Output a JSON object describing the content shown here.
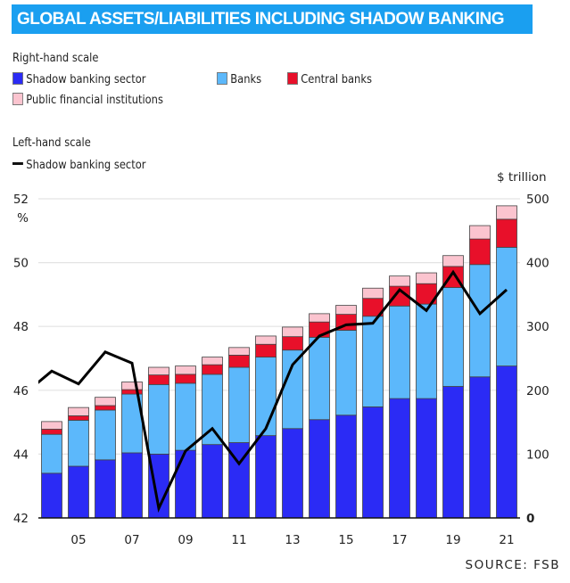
{
  "chart_data": {
    "type": "bar",
    "title": "GLOBAL ASSETS/LIABILITIES INCLUDING SHADOW BANKING",
    "source": "SOURCE: FSB",
    "legend": {
      "right_heading": "Right-hand scale",
      "left_heading": "Left-hand scale"
    },
    "x": [
      2004,
      2005,
      2006,
      2007,
      2008,
      2009,
      2010,
      2011,
      2012,
      2013,
      2014,
      2015,
      2016,
      2017,
      2018,
      2019,
      2020,
      2021
    ],
    "xticks": [
      2005,
      2007,
      2009,
      2011,
      2013,
      2015,
      2017,
      2019,
      2021
    ],
    "xtick_labels": [
      "05",
      "07",
      "09",
      "11",
      "13",
      "15",
      "17",
      "19",
      "21"
    ],
    "xlim": [
      2003.5,
      2021.5
    ],
    "right_axis": {
      "unit": "$ trillion",
      "ylim": [
        0,
        500
      ],
      "ticks": [
        "0",
        "100",
        "200",
        "300",
        "400",
        "500"
      ]
    },
    "left_axis": {
      "unit": "%",
      "ylim": [
        42,
        52
      ],
      "ticks": [
        "42",
        "44",
        "46",
        "48",
        "50",
        "52"
      ]
    },
    "grid": true,
    "stacked": true,
    "series": [
      {
        "name": "Shadow banking sector",
        "axis": "right",
        "color": "#2b2bf5",
        "values": [
          70,
          81,
          91,
          102,
          100,
          106,
          115,
          118,
          129,
          140,
          154,
          161,
          174,
          187,
          187,
          206,
          221,
          238
        ]
      },
      {
        "name": "Banks",
        "axis": "right",
        "color": "#5cb8fb",
        "values": [
          61,
          72,
          78,
          92,
          109,
          105,
          110,
          118,
          123,
          123,
          129,
          133,
          142,
          145,
          148,
          155,
          176,
          186
        ]
      },
      {
        "name": "Central banks",
        "axis": "right",
        "color": "#e8102a",
        "values": [
          8,
          7,
          7,
          7,
          15,
          14,
          15,
          19,
          20,
          21,
          24,
          25,
          28,
          31,
          32,
          33,
          40,
          44
        ]
      },
      {
        "name": "Public financial institutions",
        "axis": "right",
        "color": "#fbc4cf",
        "values": [
          12,
          13,
          13,
          12,
          12,
          13,
          12,
          12,
          13,
          15,
          13,
          14,
          16,
          16,
          17,
          17,
          21,
          21
        ]
      }
    ],
    "line": {
      "name": "Shadow banking sector",
      "axis": "left",
      "color": "#000000",
      "x": [
        2003,
        2004,
        2005,
        2006,
        2007,
        2008,
        2009,
        2010,
        2011,
        2012,
        2013,
        2014,
        2015,
        2016,
        2017,
        2018,
        2019,
        2020,
        2021
      ],
      "values": [
        45.9,
        46.6,
        46.2,
        47.2,
        46.85,
        42.3,
        44.1,
        44.8,
        43.7,
        44.8,
        46.8,
        47.7,
        48.05,
        48.1,
        49.15,
        48.5,
        49.7,
        48.4,
        49.15
      ]
    }
  }
}
